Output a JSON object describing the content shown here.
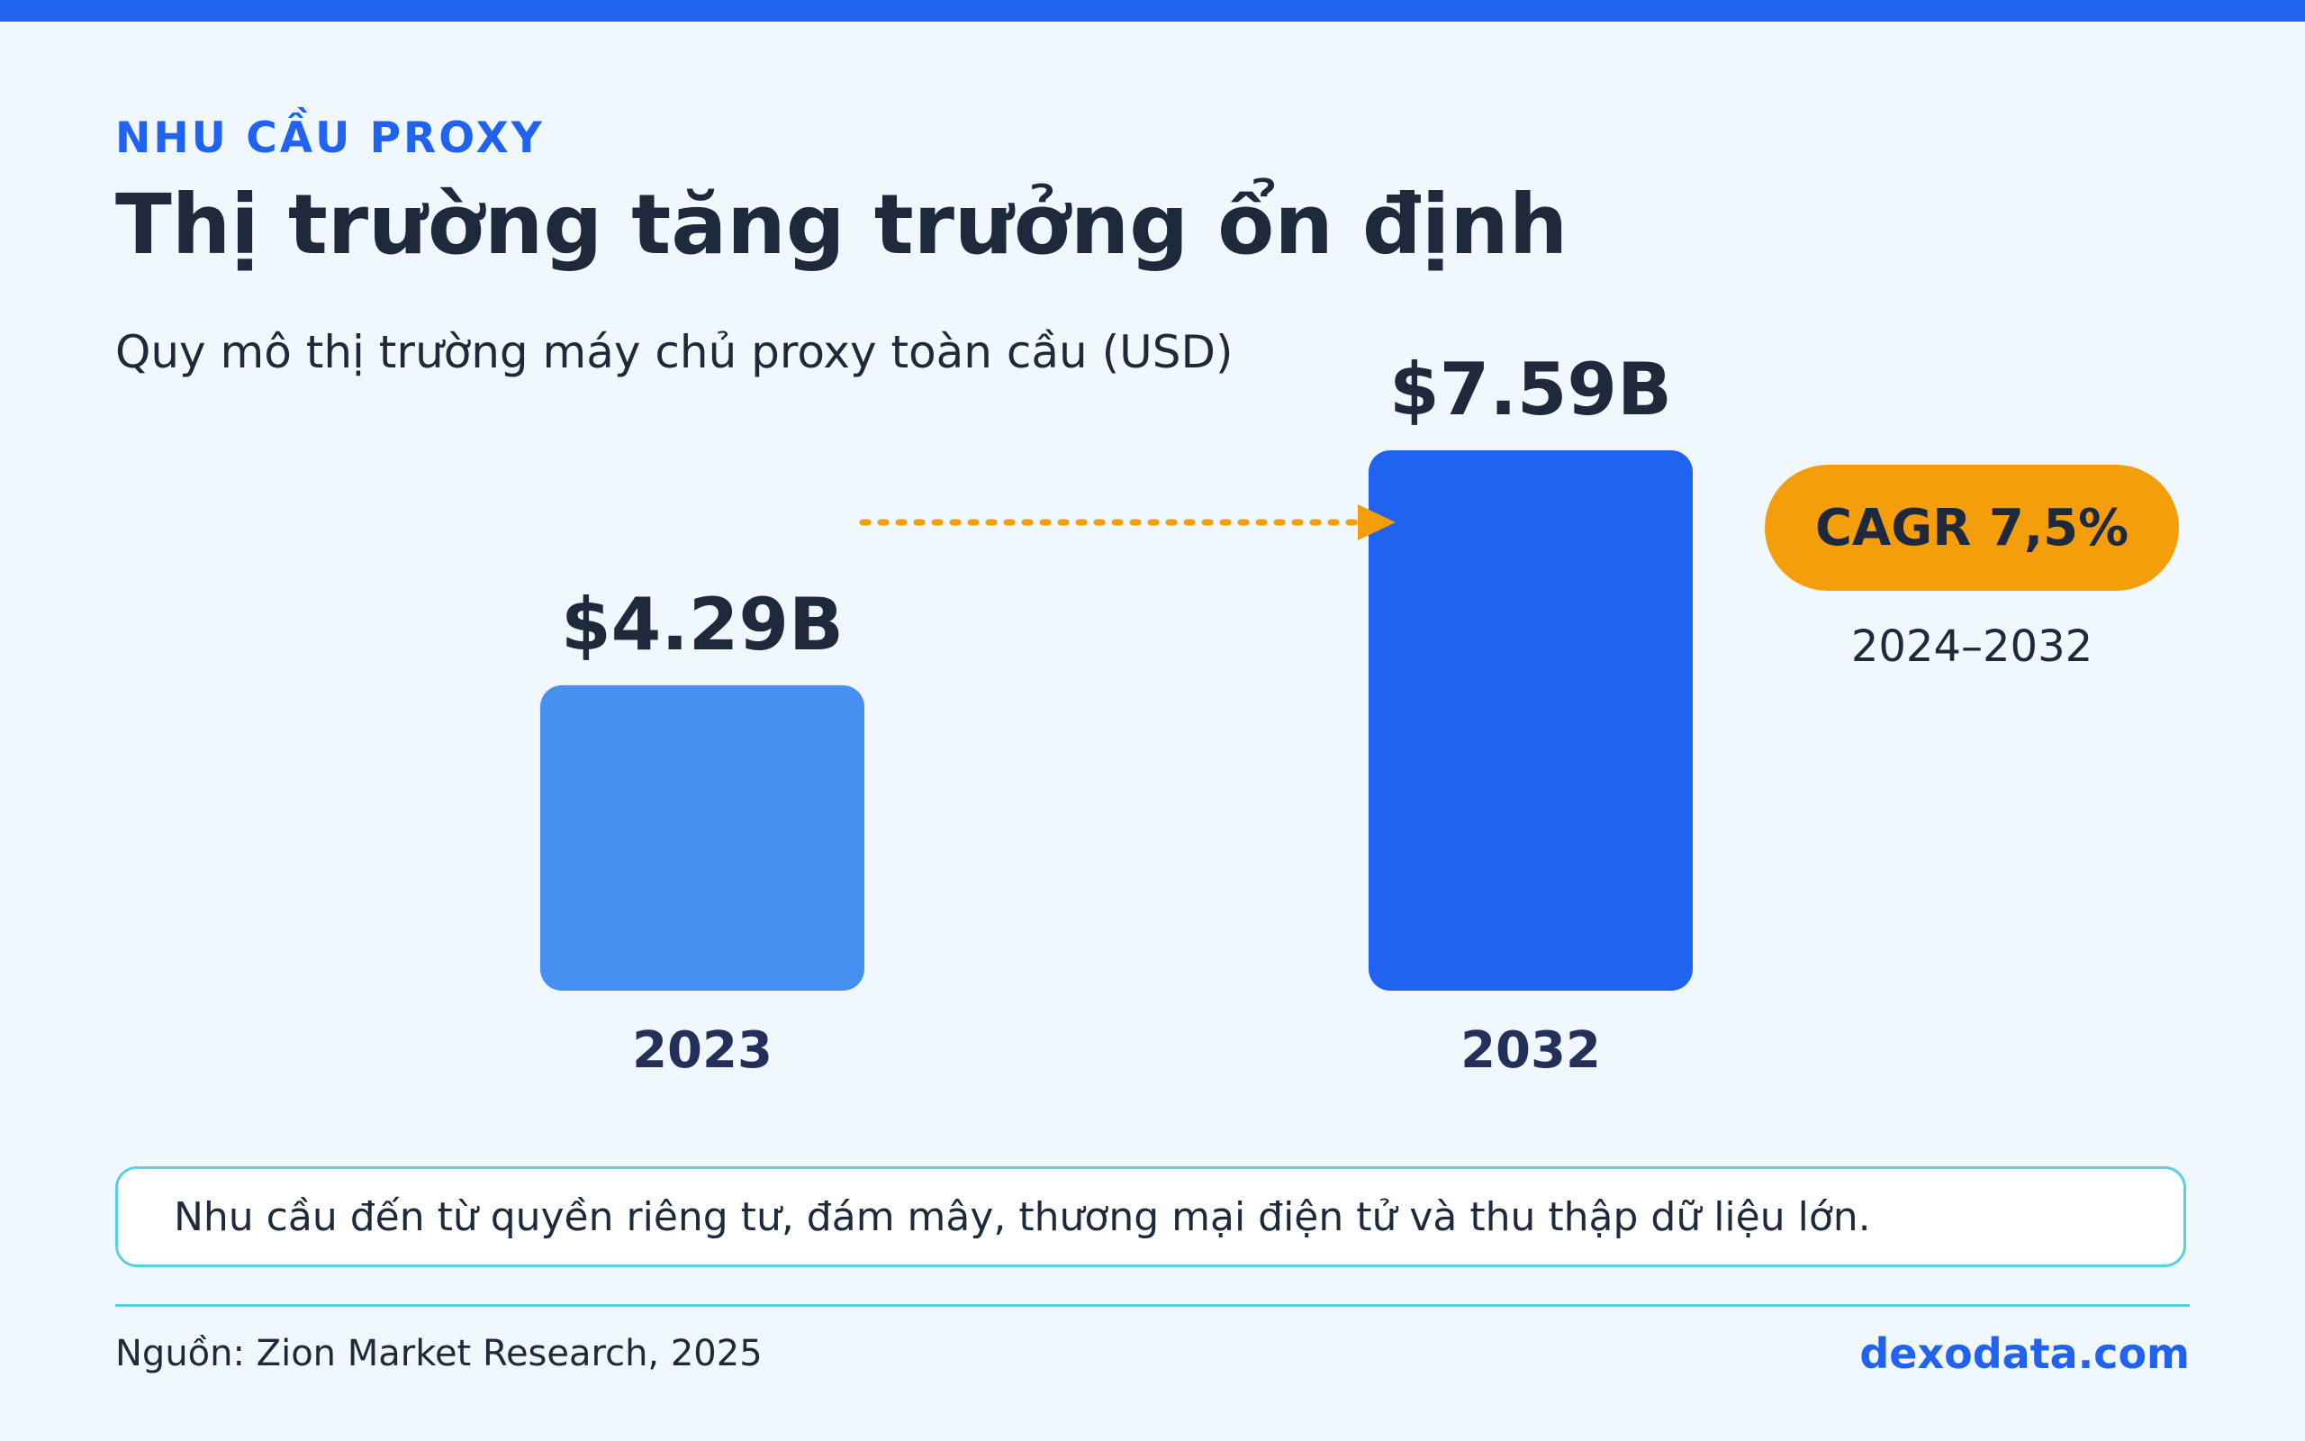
{
  "header": {
    "eyebrow": "NHU CẦU PROXY",
    "title": "Thị trường tăng trưởng ổn định",
    "subtitle": "Quy mô thị trường máy chủ proxy toàn cầu (USD)"
  },
  "colors": {
    "accent": "#1f63f0",
    "bar_2023": "#4690f2",
    "bar_2032": "#1f63f0",
    "badge": "#f59e0b",
    "text": "#1e293b",
    "category_label": "#24305a"
  },
  "chart_data": {
    "type": "bar",
    "categories": [
      "2023",
      "2032"
    ],
    "values": [
      4.29,
      7.59
    ],
    "value_labels": [
      "$4.29B",
      "$7.59B"
    ],
    "unit": "USD billion",
    "ylim": [
      0,
      7.59
    ],
    "grid": false,
    "annotation": {
      "arrow": "dotted arrow from 2023 bar toward 2032 bar",
      "badge_text": "CAGR 7,5%",
      "badge_range": "2024–2032"
    }
  },
  "note": "Nhu cầu đến từ quyền riêng tư, đám mây, thương mại điện tử và thu thập dữ liệu lớn.",
  "footer": {
    "source": "Nguồn: Zion Market Research, 2025",
    "brand": "dexodata.com"
  }
}
